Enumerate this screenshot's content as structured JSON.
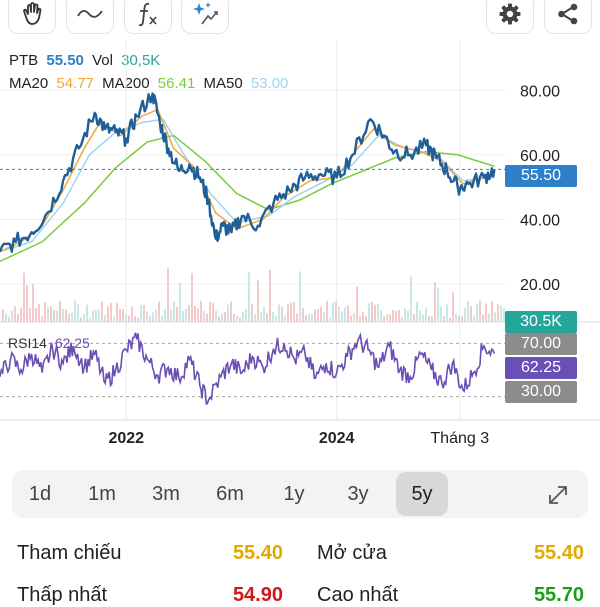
{
  "toolbar": {
    "tools": [
      "hand-tool-icon",
      "curve-tool-icon",
      "function-tool-icon",
      "magic-tool-icon"
    ],
    "settings_icon": "gear-icon",
    "share_icon": "share-icon"
  },
  "legend": {
    "symbol": "PTB",
    "price": "55.50",
    "vol_label": "Vol",
    "vol_value": "30,5K",
    "ma20_label": "MA20",
    "ma20_value": "54.77",
    "ma200_label": "MA200",
    "ma200_value": "56.41",
    "ma50_label": "MA50",
    "ma50_value": "53.00",
    "rsi_label": "RSI14",
    "rsi_value": "62.25"
  },
  "colors": {
    "price_line": "#1f5f99",
    "ma20": "#f0a93a",
    "ma50": "#9fd3f0",
    "ma200": "#7acb3d",
    "rsi": "#6a4fb5",
    "price_badge": "#2f80c8",
    "vol_badge": "#26a69a",
    "rsi_badge": "#6a4fb5",
    "gray_badge": "#8c8c8c",
    "yellow": "#e2aa00",
    "red": "#d01818",
    "green": "#1a9e1a"
  },
  "chart_data": {
    "type": "line",
    "price_axis_ticks": [
      "80.00",
      "60.00",
      "40.00",
      "20.00"
    ],
    "price_ylim": [
      15,
      90
    ],
    "current_price": 55.5,
    "current_price_label": "55.50",
    "volume_label": "30.5K",
    "rsi_ticks": [
      "70.00",
      "30.00"
    ],
    "rsi_levels": [
      70,
      30
    ],
    "rsi_ylim": [
      20,
      80
    ],
    "rsi_current_label": "62.25",
    "x_labels": [
      "2022",
      "2024",
      "Tháng 3"
    ],
    "x_label_positions": [
      2022.0,
      2024.0,
      2025.17
    ],
    "x_range": [
      2020.8,
      2025.6
    ],
    "price_series": [
      [
        2020.8,
        30
      ],
      [
        2020.95,
        33
      ],
      [
        2021.1,
        36
      ],
      [
        2021.25,
        42
      ],
      [
        2021.4,
        52
      ],
      [
        2021.55,
        62
      ],
      [
        2021.7,
        73
      ],
      [
        2021.8,
        68
      ],
      [
        2021.9,
        67
      ],
      [
        2022.0,
        65
      ],
      [
        2022.1,
        72
      ],
      [
        2022.25,
        79
      ],
      [
        2022.32,
        70
      ],
      [
        2022.4,
        62
      ],
      [
        2022.5,
        55
      ],
      [
        2022.6,
        57
      ],
      [
        2022.7,
        53
      ],
      [
        2022.78,
        46
      ],
      [
        2022.85,
        34
      ],
      [
        2022.92,
        38
      ],
      [
        2023.0,
        36
      ],
      [
        2023.1,
        41
      ],
      [
        2023.25,
        38
      ],
      [
        2023.4,
        45
      ],
      [
        2023.55,
        49
      ],
      [
        2023.7,
        53
      ],
      [
        2023.85,
        54
      ],
      [
        2024.0,
        53
      ],
      [
        2024.15,
        60
      ],
      [
        2024.32,
        71
      ],
      [
        2024.45,
        66
      ],
      [
        2024.55,
        61
      ],
      [
        2024.7,
        60
      ],
      [
        2024.85,
        63
      ],
      [
        2024.95,
        59
      ],
      [
        2025.05,
        55
      ],
      [
        2025.15,
        50
      ],
      [
        2025.25,
        51
      ],
      [
        2025.4,
        53
      ],
      [
        2025.5,
        55.5
      ]
    ],
    "ma20_series": [
      [
        2020.8,
        30
      ],
      [
        2021.0,
        33
      ],
      [
        2021.2,
        38
      ],
      [
        2021.4,
        49
      ],
      [
        2021.6,
        62
      ],
      [
        2021.75,
        70
      ],
      [
        2021.95,
        66
      ],
      [
        2022.15,
        72
      ],
      [
        2022.3,
        74
      ],
      [
        2022.45,
        62
      ],
      [
        2022.65,
        56
      ],
      [
        2022.85,
        42
      ],
      [
        2023.05,
        37
      ],
      [
        2023.3,
        40
      ],
      [
        2023.5,
        47
      ],
      [
        2023.75,
        52
      ],
      [
        2024.0,
        53
      ],
      [
        2024.2,
        62
      ],
      [
        2024.35,
        68
      ],
      [
        2024.55,
        63
      ],
      [
        2024.8,
        61
      ],
      [
        2025.0,
        58
      ],
      [
        2025.2,
        51
      ],
      [
        2025.4,
        53
      ],
      [
        2025.5,
        54.8
      ]
    ],
    "ma50_series": [
      [
        2020.8,
        30
      ],
      [
        2021.1,
        33
      ],
      [
        2021.4,
        45
      ],
      [
        2021.65,
        60
      ],
      [
        2021.9,
        67
      ],
      [
        2022.15,
        70
      ],
      [
        2022.35,
        71
      ],
      [
        2022.55,
        60
      ],
      [
        2022.8,
        48
      ],
      [
        2023.05,
        39
      ],
      [
        2023.35,
        41
      ],
      [
        2023.6,
        47
      ],
      [
        2023.9,
        52
      ],
      [
        2024.15,
        57
      ],
      [
        2024.4,
        66
      ],
      [
        2024.65,
        62
      ],
      [
        2024.95,
        60
      ],
      [
        2025.2,
        52
      ],
      [
        2025.5,
        53
      ]
    ],
    "ma200_series": [
      [
        2020.8,
        27
      ],
      [
        2021.2,
        33
      ],
      [
        2021.6,
        45
      ],
      [
        2021.9,
        56
      ],
      [
        2022.2,
        64
      ],
      [
        2022.45,
        66
      ],
      [
        2022.75,
        58
      ],
      [
        2023.05,
        48
      ],
      [
        2023.35,
        43
      ],
      [
        2023.65,
        46
      ],
      [
        2023.95,
        51
      ],
      [
        2024.25,
        55
      ],
      [
        2024.55,
        59
      ],
      [
        2024.85,
        61
      ],
      [
        2025.15,
        60
      ],
      [
        2025.5,
        56.4
      ]
    ],
    "rsi_series": [
      [
        2020.8,
        45
      ],
      [
        2020.9,
        58
      ],
      [
        2021.0,
        50
      ],
      [
        2021.1,
        62
      ],
      [
        2021.2,
        48
      ],
      [
        2021.3,
        66
      ],
      [
        2021.4,
        55
      ],
      [
        2021.5,
        68
      ],
      [
        2021.6,
        52
      ],
      [
        2021.7,
        62
      ],
      [
        2021.8,
        40
      ],
      [
        2021.9,
        50
      ],
      [
        2022.0,
        65
      ],
      [
        2022.1,
        73
      ],
      [
        2022.2,
        58
      ],
      [
        2022.3,
        46
      ],
      [
        2022.4,
        52
      ],
      [
        2022.5,
        44
      ],
      [
        2022.6,
        58
      ],
      [
        2022.7,
        38
      ],
      [
        2022.78,
        27
      ],
      [
        2022.9,
        45
      ],
      [
        2023.0,
        55
      ],
      [
        2023.1,
        48
      ],
      [
        2023.2,
        60
      ],
      [
        2023.3,
        52
      ],
      [
        2023.4,
        66
      ],
      [
        2023.5,
        70
      ],
      [
        2023.6,
        58
      ],
      [
        2023.7,
        62
      ],
      [
        2023.8,
        44
      ],
      [
        2023.9,
        55
      ],
      [
        2024.0,
        48
      ],
      [
        2024.1,
        60
      ],
      [
        2024.2,
        72
      ],
      [
        2024.3,
        65
      ],
      [
        2024.4,
        52
      ],
      [
        2024.5,
        68
      ],
      [
        2024.6,
        50
      ],
      [
        2024.7,
        45
      ],
      [
        2024.8,
        62
      ],
      [
        2024.9,
        50
      ],
      [
        2025.0,
        40
      ],
      [
        2025.1,
        55
      ],
      [
        2025.2,
        35
      ],
      [
        2025.3,
        48
      ],
      [
        2025.4,
        68
      ],
      [
        2025.5,
        62.25
      ]
    ]
  },
  "ranges": {
    "items": [
      "1d",
      "1m",
      "3m",
      "6m",
      "1y",
      "3y",
      "5y"
    ],
    "active": "5y",
    "expand_icon": "expand-icon"
  },
  "stats": {
    "ref_label": "Tham chiếu",
    "ref_value": "55.40",
    "open_label": "Mở cửa",
    "open_value": "55.40",
    "low_label": "Thấp nhất",
    "low_value": "54.90",
    "high_label": "Cao nhất",
    "high_value": "55.70"
  }
}
